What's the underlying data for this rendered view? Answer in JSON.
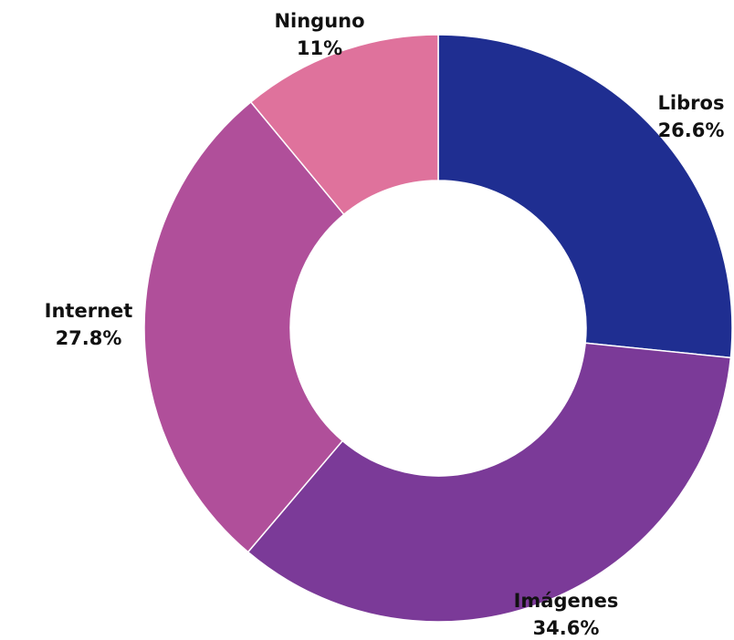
{
  "chart_data": {
    "type": "pie",
    "variant": "donut",
    "title": "",
    "slices": [
      {
        "label": "Libros",
        "value": 26.6,
        "value_text": "26.6%",
        "color": "#1f2e91"
      },
      {
        "label": "Imágenes",
        "value": 34.6,
        "value_text": "34.6%",
        "color": "#7b3a98"
      },
      {
        "label": "Internet",
        "value": 27.8,
        "value_text": "27.8%",
        "color": "#b04f9a"
      },
      {
        "label": "Ninguno",
        "value": 11,
        "value_text": "11%",
        "color": "#df729c"
      }
    ],
    "start_position": "top",
    "direction": "clockwise",
    "legend": "none",
    "label_style": "outside"
  }
}
